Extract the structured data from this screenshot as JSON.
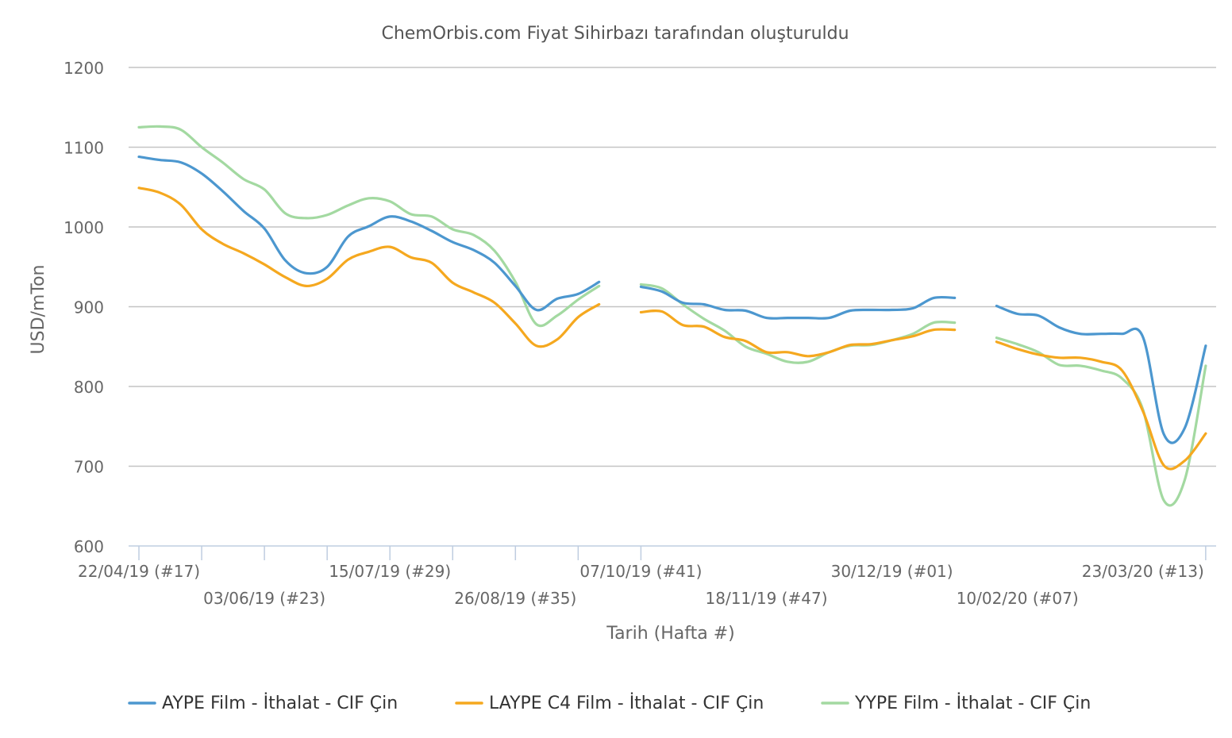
{
  "chart_data": {
    "type": "line",
    "title": "ChemOrbis.com Fiyat Sihirbazı tarafından oluşturuldu",
    "xlabel": "Tarih (Hafta #)",
    "ylabel": "USD/mTon",
    "ylim": [
      600,
      1200
    ],
    "y_ticks": [
      600,
      700,
      800,
      900,
      1000,
      1100,
      1200
    ],
    "grid": true,
    "legend_position": "bottom",
    "x_tick_labels": [
      {
        "week_index": 0,
        "label": "22/04/19 (#17)",
        "row": 0
      },
      {
        "week_index": 6,
        "label": "03/06/19 (#23)",
        "row": 1
      },
      {
        "week_index": 12,
        "label": "15/07/19 (#29)",
        "row": 0
      },
      {
        "week_index": 18,
        "label": "26/08/19 (#35)",
        "row": 1
      },
      {
        "week_index": 24,
        "label": "07/10/19 (#41)",
        "row": 0
      },
      {
        "week_index": 30,
        "label": "18/11/19 (#47)",
        "row": 1
      },
      {
        "week_index": 36,
        "label": "30/12/19 (#01)",
        "row": 0
      },
      {
        "week_index": 42,
        "label": "10/02/20 (#07)",
        "row": 1
      },
      {
        "week_index": 48,
        "label": "23/03/20 (#13)",
        "row": 0
      }
    ],
    "x_range": [
      -0.5,
      51.1
    ],
    "series": [
      {
        "name": "AYPE Film - İthalat - CIF Çin",
        "color": "#4c97cf",
        "points": [
          [
            0,
            1088
          ],
          [
            1,
            1084
          ],
          [
            2,
            1081
          ],
          [
            3,
            1067
          ],
          [
            4,
            1045
          ],
          [
            5,
            1020
          ],
          [
            6,
            998
          ],
          [
            7,
            958
          ],
          [
            8,
            942
          ],
          [
            9,
            950
          ],
          [
            10,
            988
          ],
          [
            11,
            1001
          ],
          [
            12,
            1013
          ],
          [
            13,
            1007
          ],
          [
            14,
            995
          ],
          [
            15,
            981
          ],
          [
            16,
            971
          ],
          [
            17,
            955
          ],
          [
            18,
            926
          ],
          [
            19,
            896
          ],
          [
            20,
            910
          ],
          [
            21,
            916
          ],
          [
            22,
            931
          ],
          null,
          [
            24,
            925
          ],
          [
            25,
            919
          ],
          [
            26,
            905
          ],
          [
            27,
            903
          ],
          [
            28,
            896
          ],
          [
            29,
            895
          ],
          [
            30,
            886
          ],
          [
            31,
            886
          ],
          [
            32,
            886
          ],
          [
            33,
            886
          ],
          [
            34,
            895
          ],
          [
            35,
            896
          ],
          [
            36,
            896
          ],
          [
            37,
            898
          ],
          [
            38,
            911
          ],
          [
            39,
            911
          ],
          null,
          [
            41,
            901
          ],
          [
            42,
            891
          ],
          [
            43,
            889
          ],
          [
            44,
            874
          ],
          [
            45,
            866
          ],
          [
            46,
            866
          ],
          [
            47,
            866
          ],
          [
            48,
            862
          ],
          [
            49,
            740
          ],
          [
            50,
            748
          ],
          [
            51,
            851
          ]
        ]
      },
      {
        "name": "LAYPE C4 Film - İthalat - CIF Çin",
        "color": "#f5a81f",
        "points": [
          [
            0,
            1049
          ],
          [
            1,
            1043
          ],
          [
            2,
            1028
          ],
          [
            3,
            997
          ],
          [
            4,
            979
          ],
          [
            5,
            967
          ],
          [
            6,
            953
          ],
          [
            7,
            937
          ],
          [
            8,
            926
          ],
          [
            9,
            935
          ],
          [
            10,
            959
          ],
          [
            11,
            969
          ],
          [
            12,
            975
          ],
          [
            13,
            962
          ],
          [
            14,
            955
          ],
          [
            15,
            930
          ],
          [
            16,
            918
          ],
          [
            17,
            905
          ],
          [
            18,
            879
          ],
          [
            19,
            851
          ],
          [
            20,
            859
          ],
          [
            21,
            887
          ],
          [
            22,
            903
          ],
          null,
          [
            24,
            893
          ],
          [
            25,
            894
          ],
          [
            26,
            877
          ],
          [
            27,
            875
          ],
          [
            28,
            862
          ],
          [
            29,
            857
          ],
          [
            30,
            843
          ],
          [
            31,
            843
          ],
          [
            32,
            838
          ],
          [
            33,
            843
          ],
          [
            34,
            852
          ],
          [
            35,
            853
          ],
          [
            36,
            858
          ],
          [
            37,
            863
          ],
          [
            38,
            871
          ],
          [
            39,
            871
          ],
          null,
          [
            41,
            856
          ],
          [
            42,
            847
          ],
          [
            43,
            840
          ],
          [
            44,
            836
          ],
          [
            45,
            836
          ],
          [
            46,
            831
          ],
          [
            47,
            820
          ],
          [
            48,
            769
          ],
          [
            49,
            701
          ],
          [
            50,
            707
          ],
          [
            51,
            741
          ]
        ]
      },
      {
        "name": "YYPE Film - İthalat - CIF Çin",
        "color": "#a3d9a1",
        "points": [
          [
            0,
            1125
          ],
          [
            1,
            1126
          ],
          [
            2,
            1122
          ],
          [
            3,
            1100
          ],
          [
            4,
            1081
          ],
          [
            5,
            1060
          ],
          [
            6,
            1047
          ],
          [
            7,
            1017
          ],
          [
            8,
            1011
          ],
          [
            9,
            1015
          ],
          [
            10,
            1027
          ],
          [
            11,
            1036
          ],
          [
            12,
            1032
          ],
          [
            13,
            1016
          ],
          [
            14,
            1013
          ],
          [
            15,
            997
          ],
          [
            16,
            990
          ],
          [
            17,
            970
          ],
          [
            18,
            931
          ],
          [
            19,
            878
          ],
          [
            20,
            889
          ],
          [
            21,
            909
          ],
          [
            22,
            926
          ],
          null,
          [
            24,
            928
          ],
          [
            25,
            923
          ],
          [
            26,
            903
          ],
          [
            27,
            885
          ],
          [
            28,
            870
          ],
          [
            29,
            850
          ],
          [
            30,
            841
          ],
          [
            31,
            831
          ],
          [
            32,
            831
          ],
          [
            33,
            843
          ],
          [
            34,
            851
          ],
          [
            35,
            852
          ],
          [
            36,
            858
          ],
          [
            37,
            866
          ],
          [
            38,
            880
          ],
          [
            39,
            880
          ],
          null,
          [
            41,
            861
          ],
          [
            42,
            853
          ],
          [
            43,
            843
          ],
          [
            44,
            827
          ],
          [
            45,
            826
          ],
          [
            46,
            820
          ],
          [
            47,
            810
          ],
          [
            48,
            771
          ],
          [
            49,
            657
          ],
          [
            50,
            683
          ],
          [
            51,
            826
          ]
        ]
      }
    ]
  }
}
